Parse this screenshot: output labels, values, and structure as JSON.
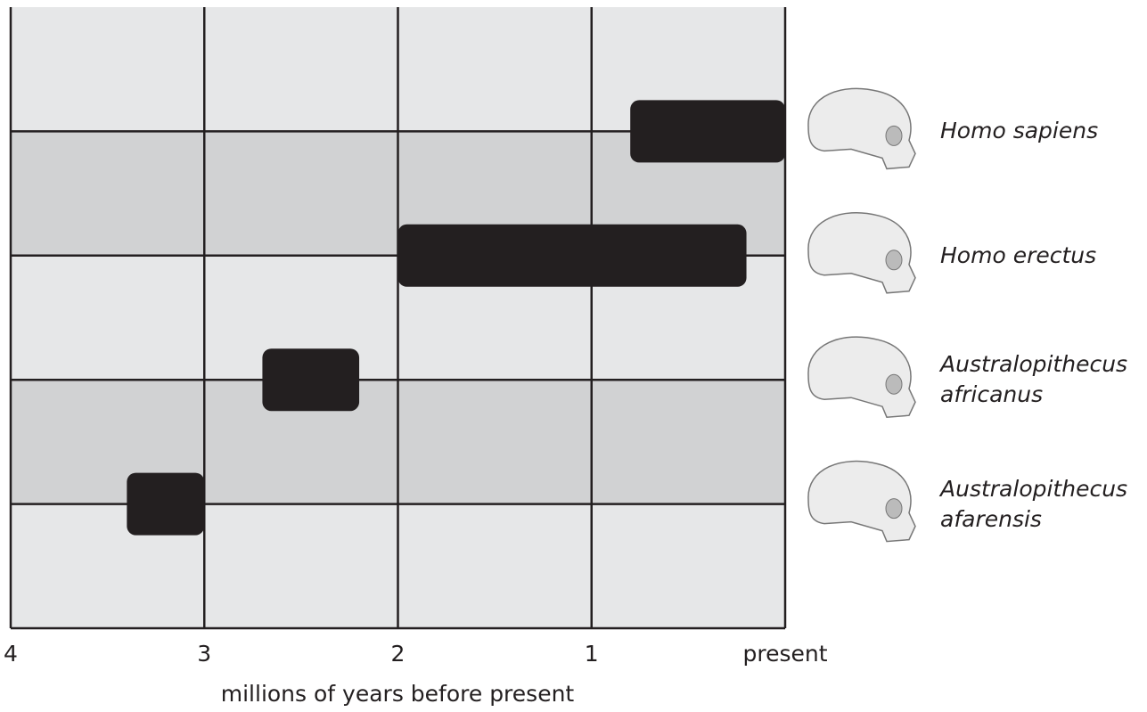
{
  "chart_data": {
    "type": "range",
    "categories": [
      "Homo sapiens",
      "Homo erectus",
      "Australopithecus africanus",
      "Australopithecus afarensis"
    ],
    "start": [
      0.8,
      2.0,
      2.7,
      3.4
    ],
    "end": [
      0,
      0.2,
      2.2,
      3.0
    ],
    "color": "#231f20",
    "xlabel": "millions of years before present",
    "xlim": [
      4,
      0
    ],
    "xticks": [
      4,
      3,
      2,
      1,
      {
        "value": 0,
        "label": "present"
      }
    ],
    "grid": true
  }
}
